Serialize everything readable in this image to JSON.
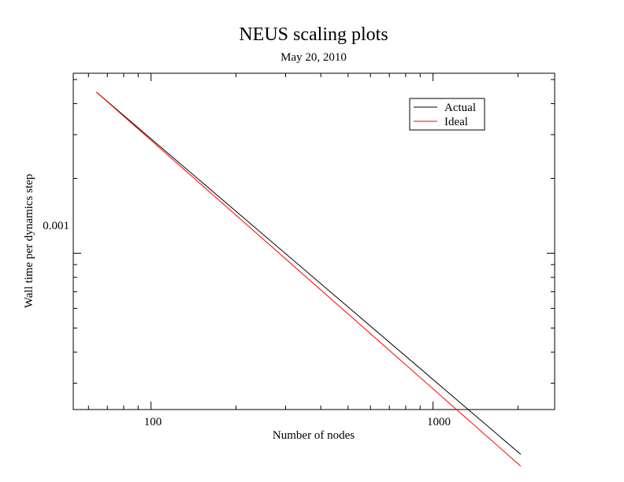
{
  "chart_data": {
    "type": "line",
    "title": "NEUS scaling plots",
    "subtitle": "May 20, 2010",
    "xlabel": "Number of nodes",
    "ylabel": "Wall time per dynamics step",
    "x_scale": "log",
    "y_scale": "log",
    "xlim": [
      53,
      2700
    ],
    "ylim": [
      0.000235,
      0.0053
    ],
    "x_tick_labels": [
      "100",
      "1000"
    ],
    "y_tick_labels": [
      "0.001"
    ],
    "grid": false,
    "legend_position": "top-right",
    "series": [
      {
        "name": "Actual",
        "color": "#000000",
        "x": [
          64,
          2048
        ],
        "y": [
          0.00445,
          0.000155
        ]
      },
      {
        "name": "Ideal",
        "color": "#ff0000",
        "x": [
          64,
          2048
        ],
        "y": [
          0.00445,
          0.000139
        ]
      }
    ]
  }
}
